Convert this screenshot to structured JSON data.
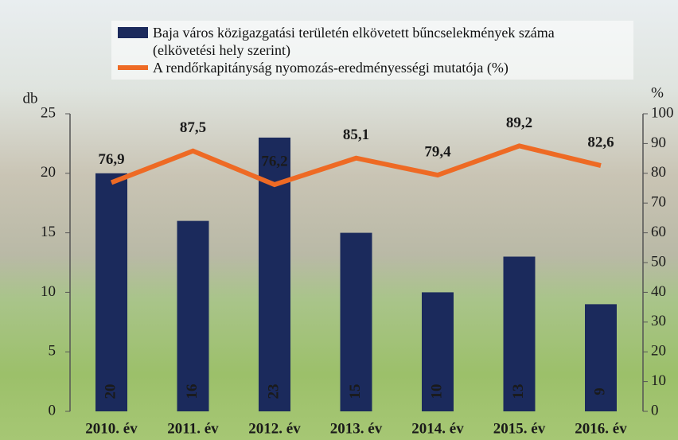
{
  "chart_data": {
    "type": "bar",
    "categories": [
      "2010. év",
      "2011. év",
      "2012. év",
      "2013. év",
      "2014. év",
      "2015. év",
      "2016. év"
    ],
    "series": [
      {
        "name": "Baja város közigazgatási területén elkövetett bűncselekmények száma (elkövetési hely szerint)",
        "type": "bar",
        "color": "#1b2a5c",
        "values": [
          20,
          16,
          23,
          15,
          10,
          13,
          9
        ]
      },
      {
        "name": "A rendőrkapitányság nyomozás-eredményességi mutatója (%)",
        "type": "line",
        "axis": "y2",
        "color": "#ee6a24",
        "values": [
          76.9,
          87.5,
          76.2,
          85.1,
          79.4,
          89.2,
          82.6
        ],
        "value_labels": [
          "76,9",
          "87,5",
          "76,2",
          "85,1",
          "79,4",
          "89,2",
          "82,6"
        ]
      }
    ],
    "y_label": "db",
    "y2_label": "%",
    "ylim": [
      0,
      25
    ],
    "yticks": [
      0,
      5,
      10,
      15,
      20,
      25
    ],
    "y2lim": [
      0,
      100
    ],
    "y2ticks": [
      0,
      10,
      20,
      30,
      40,
      50,
      60,
      70,
      80,
      90,
      100
    ]
  }
}
